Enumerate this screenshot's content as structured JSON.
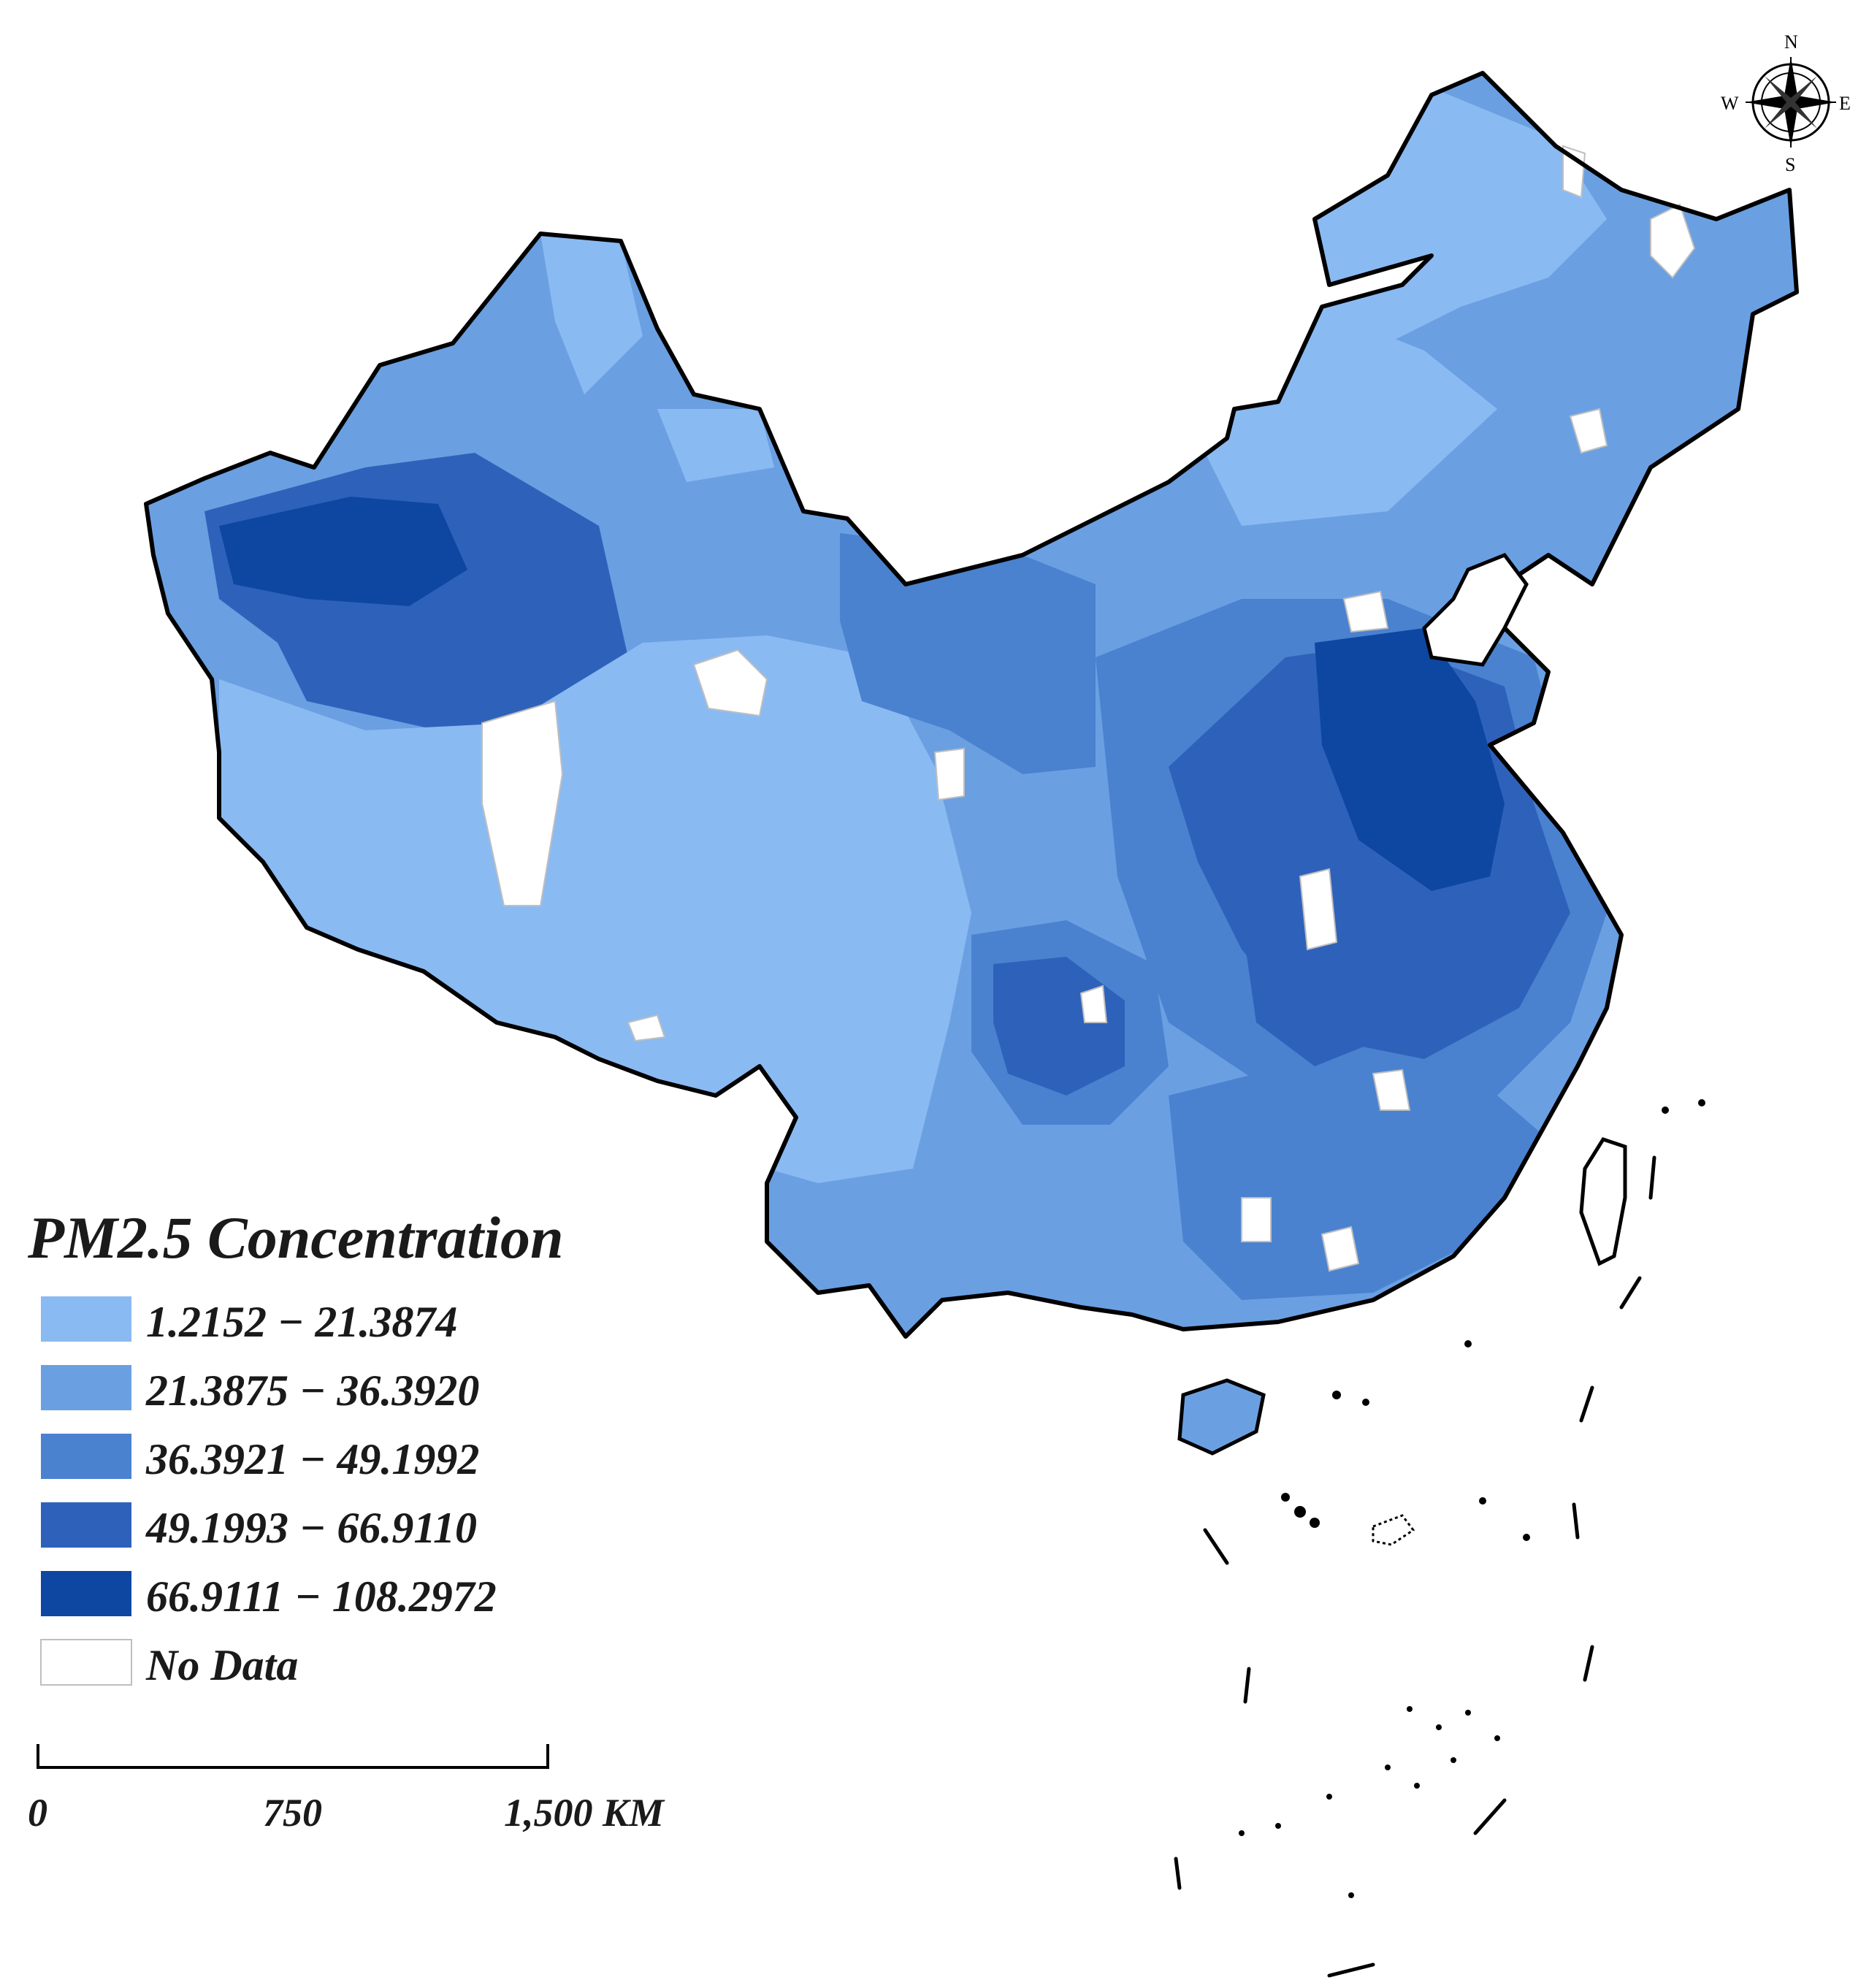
{
  "legend": {
    "title": "PM2.5 Concentration",
    "classes": [
      {
        "label": "1.2152 − 21.3874",
        "color": "#8abaf2"
      },
      {
        "label": "21.3875 − 36.3920",
        "color": "#6aa0e2"
      },
      {
        "label": "36.3921 − 49.1992",
        "color": "#4a82d0"
      },
      {
        "label": "49.1993 − 66.9110",
        "color": "#2e62ba"
      },
      {
        "label": "66.9111 − 108.2972",
        "color": "#0d47a1"
      }
    ],
    "no_data": {
      "label": "No Data",
      "color": "#ffffff"
    }
  },
  "scale_bar": {
    "labels": [
      "0",
      "750",
      "1,500 KM"
    ]
  },
  "compass": {
    "north": "N",
    "south": "S",
    "east": "E",
    "west": "W"
  }
}
